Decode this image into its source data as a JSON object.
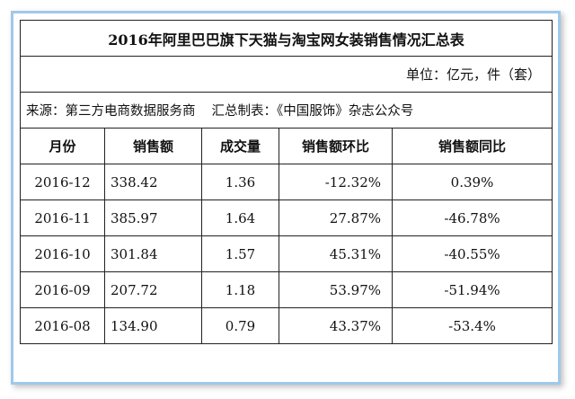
{
  "table": {
    "title": "2016年阿里巴巴旗下天猫与淘宝网女装销售情况汇总表",
    "unit": "单位：亿元，件（套）",
    "source": "来源：第三方电商数据服务商",
    "compiler": "汇总制表：《中国服饰》杂志公众号",
    "columns": [
      "月份",
      "销售额",
      "成交量",
      "销售额环比",
      "销售额同比"
    ],
    "rows": [
      [
        "2016-12",
        "338.42",
        "1.36",
        "-12.32%",
        "0.39%"
      ],
      [
        "2016-11",
        "385.97",
        "1.64",
        "27.87%",
        "-46.78%"
      ],
      [
        "2016-10",
        "301.84",
        "1.57",
        "45.31%",
        "-40.55%"
      ],
      [
        "2016-09",
        "207.72",
        "1.18",
        "53.97%",
        "-51.94%"
      ],
      [
        "2016-08",
        "134.90",
        "0.79",
        "43.37%",
        "-53.4%"
      ]
    ]
  },
  "colors": {
    "frame_border": "#9fc9ea",
    "grid_line": "#222222",
    "text": "#111111"
  }
}
